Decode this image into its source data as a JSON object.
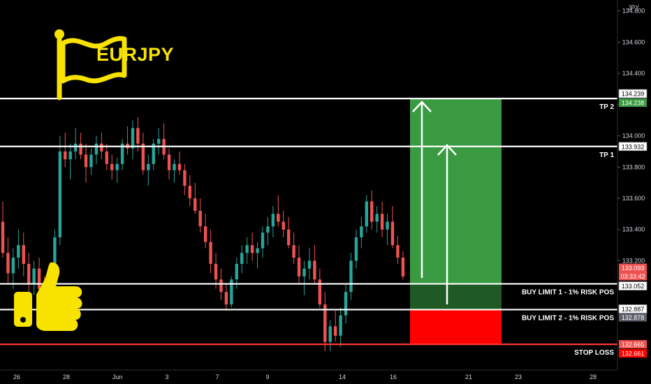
{
  "symbol": "EURJPY",
  "icons": {
    "flag": "flag-icon",
    "thumbs_up": "thumbs-up-icon"
  },
  "colors": {
    "background": "#000000",
    "bullish": "#26a69a",
    "bearish": "#ef5350",
    "brand_yellow": "#f7e200",
    "target_zone": "#3a9a42",
    "target_zone_dark": "#1f5a24",
    "stop_zone": "#ff0000",
    "level_line": "#ffffff",
    "stop_line": "#ff3b30"
  },
  "chart_data": {
    "type": "candlestick",
    "currency": "JPY",
    "ylim": [
      132.5,
      134.87
    ],
    "y_ticks": [
      "134.800",
      "134.600",
      "134.400",
      "134.200",
      "134.000",
      "133.800",
      "133.600",
      "133.400",
      "133.200"
    ],
    "x_ticks": [
      "26",
      "28",
      "Jun",
      "3",
      "7",
      "9",
      "14",
      "16",
      "21",
      "23",
      "28"
    ],
    "levels": [
      {
        "name": "TP 2",
        "price": 134.239,
        "price_label": "134.239"
      },
      {
        "name": "TP 1",
        "price": 133.932,
        "price_label": "133.932"
      },
      {
        "name": "BUY LIMIT 1 - 1% RISK POS",
        "price": 133.052,
        "price_label": "133.052"
      },
      {
        "name": "BUY LIMIT 2 - 1% RISK POS",
        "price": 132.887,
        "price_label": "132.887"
      },
      {
        "name": "STOP LOSS",
        "price": 132.665,
        "price_label": "132.665"
      }
    ],
    "price_tags": {
      "target": "134.238",
      "current_price": "133.093",
      "countdown": "03:33:42",
      "buy2_secondary": "132.878",
      "stop_secondary": "132.661"
    },
    "position": {
      "entry": 133.052,
      "entry_2": 132.887,
      "target": 134.239,
      "stop": 132.665
    },
    "candles": [
      [
        133.45,
        133.58,
        133.22,
        133.25
      ],
      [
        133.25,
        133.35,
        133.05,
        133.12
      ],
      [
        133.12,
        133.28,
        133.02,
        133.22
      ],
      [
        133.22,
        133.4,
        133.15,
        133.3
      ],
      [
        133.3,
        133.38,
        133.1,
        133.18
      ],
      [
        133.18,
        133.25,
        133.0,
        133.05
      ],
      [
        133.05,
        133.2,
        132.98,
        133.15
      ],
      [
        133.15,
        133.22,
        133.0,
        133.02
      ],
      [
        133.02,
        133.1,
        132.9,
        132.98
      ],
      [
        132.98,
        133.08,
        132.92,
        133.05
      ],
      [
        133.05,
        133.4,
        133.0,
        133.35
      ],
      [
        133.35,
        134.0,
        133.3,
        133.9
      ],
      [
        133.9,
        134.02,
        133.8,
        133.85
      ],
      [
        133.85,
        133.95,
        133.72,
        133.9
      ],
      [
        133.9,
        134.05,
        133.85,
        133.95
      ],
      [
        133.95,
        134.02,
        133.85,
        133.88
      ],
      [
        133.88,
        133.95,
        133.7,
        133.8
      ],
      [
        133.8,
        133.92,
        133.75,
        133.88
      ],
      [
        133.88,
        134.0,
        133.82,
        133.95
      ],
      [
        133.95,
        134.02,
        133.85,
        133.9
      ],
      [
        133.9,
        133.95,
        133.78,
        133.82
      ],
      [
        133.82,
        133.88,
        133.72,
        133.78
      ],
      [
        133.78,
        133.86,
        133.7,
        133.82
      ],
      [
        133.82,
        133.98,
        133.78,
        133.95
      ],
      [
        133.95,
        134.06,
        133.88,
        133.92
      ],
      [
        133.92,
        134.1,
        133.85,
        134.05
      ],
      [
        134.05,
        134.12,
        133.9,
        133.95
      ],
      [
        133.95,
        134.02,
        133.75,
        133.78
      ],
      [
        133.78,
        133.88,
        133.68,
        133.82
      ],
      [
        133.82,
        133.98,
        133.78,
        133.95
      ],
      [
        133.95,
        134.05,
        133.88,
        133.98
      ],
      [
        133.98,
        134.08,
        133.85,
        133.88
      ],
      [
        133.88,
        133.92,
        133.72,
        133.78
      ],
      [
        133.78,
        133.85,
        133.7,
        133.82
      ],
      [
        133.82,
        133.9,
        133.75,
        133.78
      ],
      [
        133.78,
        133.82,
        133.62,
        133.68
      ],
      [
        133.68,
        133.75,
        133.55,
        133.6
      ],
      [
        133.6,
        133.7,
        133.5,
        133.52
      ],
      [
        133.52,
        133.6,
        133.38,
        133.42
      ],
      [
        133.42,
        133.5,
        133.28,
        133.32
      ],
      [
        133.32,
        133.4,
        133.12,
        133.18
      ],
      [
        133.18,
        133.25,
        133.02,
        133.08
      ],
      [
        133.08,
        133.15,
        132.95,
        133.0
      ],
      [
        133.0,
        133.05,
        132.88,
        132.92
      ],
      [
        132.92,
        133.1,
        132.9,
        133.08
      ],
      [
        133.08,
        133.22,
        133.02,
        133.18
      ],
      [
        133.18,
        133.3,
        133.12,
        133.25
      ],
      [
        133.25,
        133.35,
        133.18,
        133.3
      ],
      [
        133.3,
        133.38,
        133.2,
        133.25
      ],
      [
        133.25,
        133.32,
        133.15,
        133.28
      ],
      [
        133.28,
        133.42,
        133.22,
        133.38
      ],
      [
        133.38,
        133.48,
        133.3,
        133.42
      ],
      [
        133.42,
        133.55,
        133.35,
        133.5
      ],
      [
        133.5,
        133.62,
        133.42,
        133.45
      ],
      [
        133.45,
        133.52,
        133.35,
        133.4
      ],
      [
        133.4,
        133.48,
        133.28,
        133.3
      ],
      [
        133.3,
        133.38,
        133.18,
        133.22
      ],
      [
        133.22,
        133.3,
        133.05,
        133.1
      ],
      [
        133.1,
        133.2,
        132.98,
        133.15
      ],
      [
        133.15,
        133.28,
        133.08,
        133.2
      ],
      [
        133.2,
        133.3,
        133.05,
        133.08
      ],
      [
        133.08,
        133.15,
        132.9,
        132.92
      ],
      [
        132.92,
        133.0,
        132.62,
        132.68
      ],
      [
        132.68,
        132.82,
        132.62,
        132.78
      ],
      [
        132.78,
        132.88,
        132.68,
        132.72
      ],
      [
        132.72,
        132.9,
        132.65,
        132.85
      ],
      [
        132.85,
        133.05,
        132.8,
        133.0
      ],
      [
        133.0,
        133.25,
        132.95,
        133.2
      ],
      [
        133.2,
        133.4,
        133.15,
        133.35
      ],
      [
        133.35,
        133.48,
        133.28,
        133.42
      ],
      [
        133.42,
        133.62,
        133.38,
        133.58
      ],
      [
        133.58,
        133.65,
        133.4,
        133.45
      ],
      [
        133.45,
        133.55,
        133.38,
        133.5
      ],
      [
        133.5,
        133.58,
        133.35,
        133.4
      ],
      [
        133.4,
        133.5,
        133.3,
        133.45
      ],
      [
        133.45,
        133.55,
        133.28,
        133.3
      ],
      [
        133.3,
        133.36,
        133.18,
        133.22
      ],
      [
        133.22,
        133.26,
        133.08,
        133.1
      ]
    ]
  }
}
